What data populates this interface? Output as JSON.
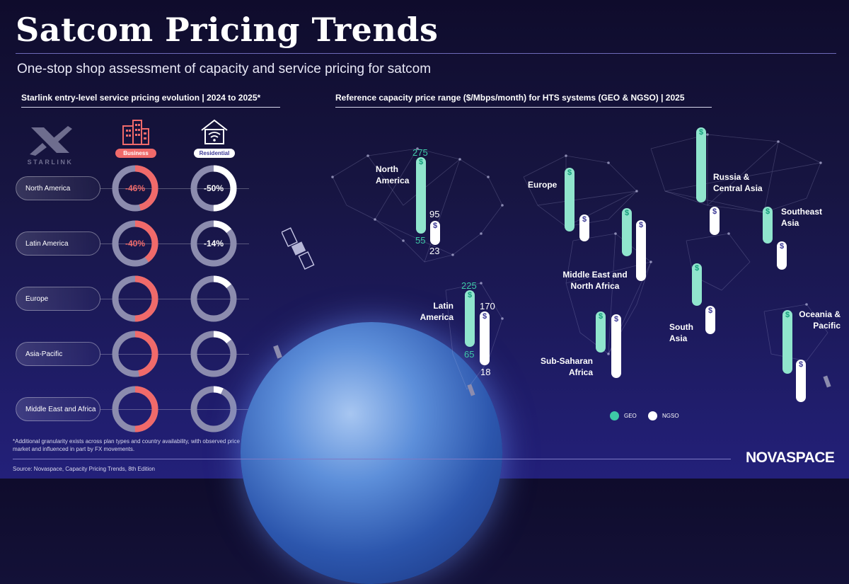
{
  "title": "Satcom Pricing Trends",
  "subtitle": "One-stop shop assessment of capacity and service pricing for satcom",
  "left_section": {
    "title": "Starlink entry-level service pricing evolution | 2024 to 2025*",
    "logo_text": "STARLINK",
    "business_label": "Business",
    "residential_label": "Residential",
    "footnote": "*Additional granularity exists across plan types and country availability, with observed price declines varying by market and influenced in part by FX movements."
  },
  "right_section": {
    "title": "Reference capacity price range ($/Mbps/month) for HTS systems (GEO & NGSO) | 2025",
    "legend_geo": "GEO",
    "legend_ngso": "NGSO",
    "pill_icon": "$",
    "labels": {
      "north_america": "North America",
      "latin_america": "Latin America",
      "europe": "Europe",
      "russia": "Russia & Central Asia",
      "mena": "Middle East and North Africa",
      "ssa": "Sub-Saharan Africa",
      "south_asia": "South Asia",
      "se_asia": "Southeast Asia",
      "oceania": "Oceania & Pacific"
    },
    "values": {
      "na_geo_max": "275",
      "na_geo_min": "55",
      "na_ngso_max": "95",
      "na_ngso_min": "23",
      "la_geo_max": "225",
      "la_geo_min": "65",
      "la_ngso_max": "170",
      "la_ngso_min": "18"
    }
  },
  "source": "Source: Novaspace, Capacity Pricing Trends, 8th Edition",
  "brand": "NOVASPACE",
  "colors": {
    "business": "#f06a6a",
    "residential": "#ffffff",
    "donut_track": "#8c8cae",
    "geo": "#90e5cd",
    "ngso": "#ffffff"
  },
  "chart_data": [
    {
      "type": "pie",
      "title": "Starlink entry-level service pricing evolution | 2024 to 2025*",
      "categories": [
        "North America",
        "Latin America",
        "Europe",
        "Asia-Pacific",
        "Middle East and Africa"
      ],
      "series": [
        {
          "name": "Business",
          "values": [
            -46,
            -40,
            -50,
            -47,
            -50
          ],
          "labels": [
            "-46%",
            "-40%",
            "",
            "",
            ""
          ]
        },
        {
          "name": "Residential",
          "values": [
            -50,
            -14,
            -14,
            -14,
            -7
          ],
          "labels": [
            "-50%",
            "-14%",
            "",
            "",
            ""
          ]
        }
      ]
    },
    {
      "type": "bar",
      "title": "Reference capacity price range ($/Mbps/month) for HTS systems (GEO & NGSO) | 2025",
      "categories": [
        "North America",
        "Latin America",
        "Europe",
        "Russia & Central Asia",
        "Middle East and North Africa",
        "Sub-Saharan Africa",
        "South Asia",
        "Southeast Asia",
        "Oceania & Pacific"
      ],
      "series": [
        {
          "name": "GEO",
          "ranges": [
            [
              55,
              275
            ],
            [
              65,
              225
            ],
            [
              50,
              200
            ],
            [
              85,
              240
            ],
            [
              40,
              160
            ],
            [
              45,
              140
            ],
            [
              80,
              170
            ],
            [
              35,
              85
            ],
            [
              45,
              210
            ]
          ]
        },
        {
          "name": "NGSO",
          "ranges": [
            [
              23,
              95
            ],
            [
              18,
              170
            ],
            [
              23,
              60
            ],
            [
              23,
              60
            ],
            [
              25,
              175
            ],
            [
              18,
              165
            ],
            [
              30,
              95
            ],
            [
              20,
              65
            ],
            [
              20,
              100
            ]
          ]
        }
      ],
      "ylabel": "$/Mbps/month"
    }
  ]
}
